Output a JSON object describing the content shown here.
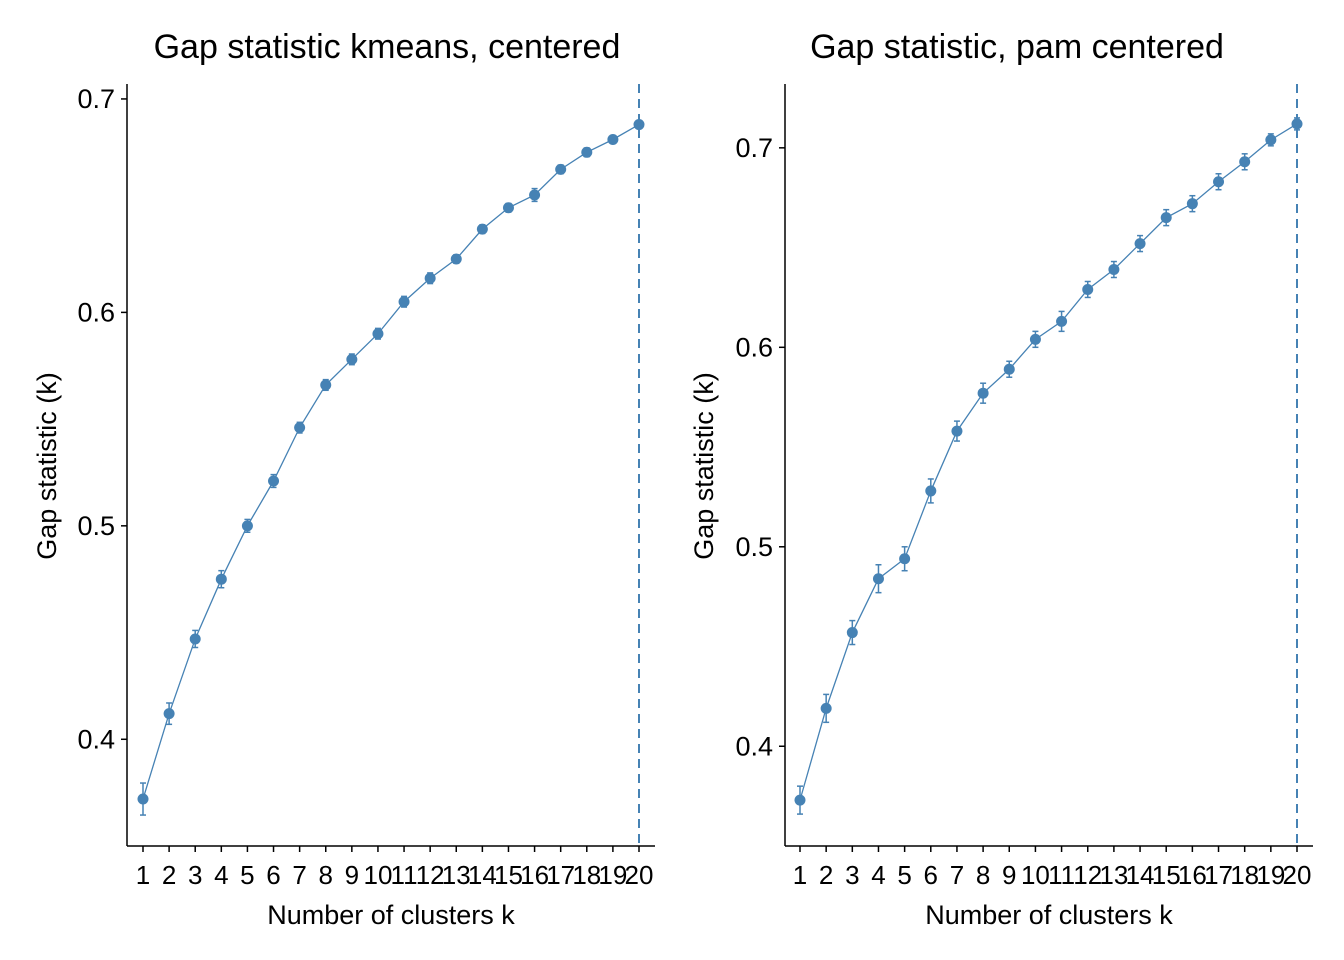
{
  "colors": {
    "series": "#4682B4",
    "axis": "#000000",
    "background": "#FFFFFF"
  },
  "chart_data": [
    {
      "type": "line",
      "title": "Gap statistic kmeans, centered",
      "xlabel": "Number of clusters k",
      "ylabel": "Gap statistic (k)",
      "x": [
        1,
        2,
        3,
        4,
        5,
        6,
        7,
        8,
        9,
        10,
        11,
        12,
        13,
        14,
        15,
        16,
        17,
        18,
        19,
        20
      ],
      "y": [
        0.372,
        0.412,
        0.447,
        0.475,
        0.5,
        0.521,
        0.546,
        0.566,
        0.578,
        0.59,
        0.605,
        0.616,
        0.625,
        0.639,
        0.649,
        0.655,
        0.667,
        0.675,
        0.681,
        0.688
      ],
      "err": [
        0.0075,
        0.005,
        0.004,
        0.004,
        0.003,
        0.003,
        0.0025,
        0.0025,
        0.0025,
        0.0025,
        0.0025,
        0.0025,
        0.002,
        0.002,
        0.002,
        0.003,
        0.002,
        0.002,
        0.0015,
        0.0015
      ],
      "ylim": [
        0.35,
        0.707
      ],
      "yticks": [
        0.4,
        0.5,
        0.6,
        0.7
      ],
      "ytick_labels": [
        "0.4",
        "0.5",
        "0.6",
        "0.7"
      ],
      "xticks": [
        "1",
        "2",
        "3",
        "4",
        "5",
        "6",
        "7",
        "8",
        "9",
        "10",
        "11",
        "12",
        "13",
        "14",
        "15",
        "16",
        "17",
        "18",
        "19",
        "20"
      ],
      "optimal_k": 20,
      "grid": false,
      "legend": "none"
    },
    {
      "type": "line",
      "title": "Gap statistic, pam centered",
      "xlabel": "Number of clusters k",
      "ylabel": "Gap statistic (k)",
      "x": [
        1,
        2,
        3,
        4,
        5,
        6,
        7,
        8,
        9,
        10,
        11,
        12,
        13,
        14,
        15,
        16,
        17,
        18,
        19,
        20
      ],
      "y": [
        0.373,
        0.419,
        0.457,
        0.484,
        0.494,
        0.528,
        0.558,
        0.577,
        0.589,
        0.604,
        0.613,
        0.629,
        0.639,
        0.652,
        0.665,
        0.672,
        0.683,
        0.693,
        0.704,
        0.712
      ],
      "err": [
        0.007,
        0.007,
        0.006,
        0.007,
        0.006,
        0.006,
        0.005,
        0.005,
        0.004,
        0.004,
        0.005,
        0.004,
        0.004,
        0.004,
        0.004,
        0.004,
        0.004,
        0.004,
        0.003,
        0.003
      ],
      "ylim": [
        0.35,
        0.732
      ],
      "yticks": [
        0.4,
        0.5,
        0.6,
        0.7
      ],
      "ytick_labels": [
        "0.4",
        "0.5",
        "0.6",
        "0.7"
      ],
      "xticks": [
        "1",
        "2",
        "3",
        "4",
        "5",
        "6",
        "7",
        "8",
        "9",
        "10",
        "11",
        "12",
        "13",
        "14",
        "15",
        "16",
        "17",
        "18",
        "19",
        "20"
      ],
      "optimal_k": 20,
      "grid": false,
      "legend": "none"
    }
  ]
}
